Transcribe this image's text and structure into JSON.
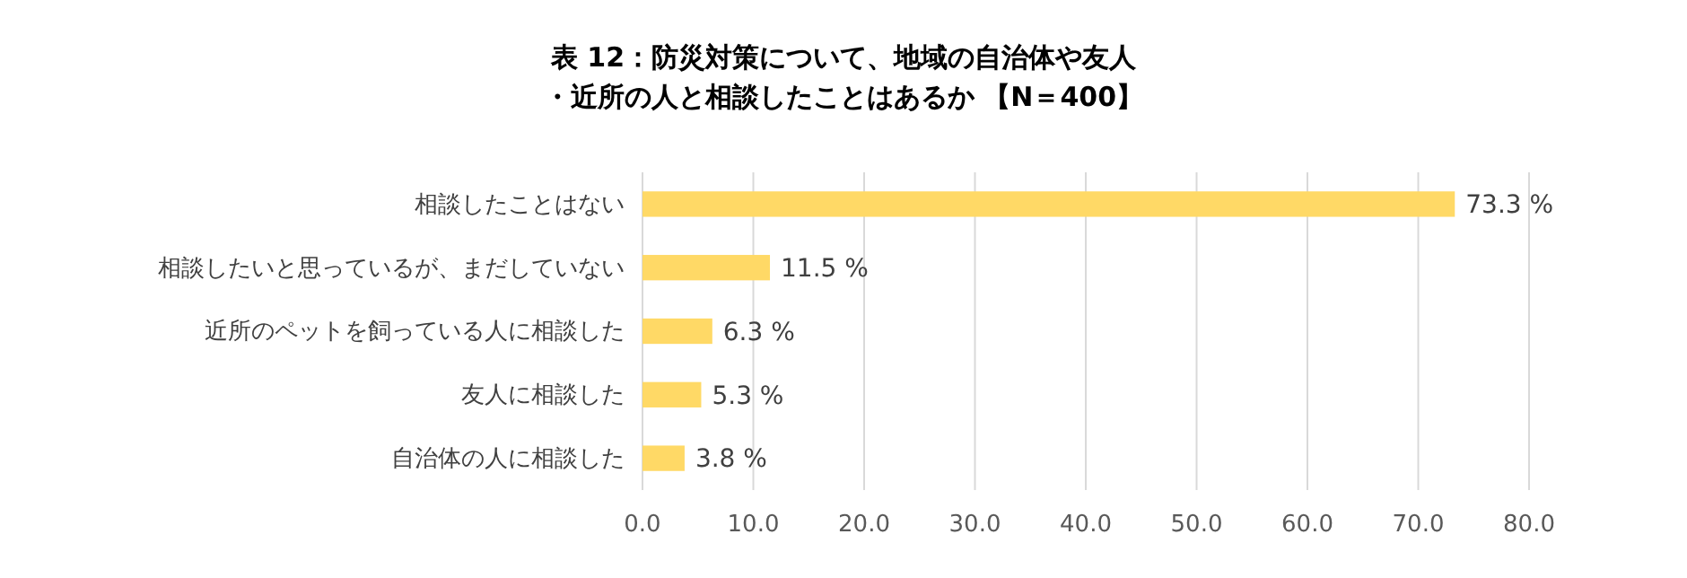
{
  "chart_data": {
    "type": "bar",
    "orientation": "horizontal",
    "title": "表 12：防災対策について、地域の自治体や友人・近所の人と相談したことはあるか 【N＝400】",
    "categories": [
      "相談したことはない",
      "相談したいと思っているが、まだしていない",
      "近所のペットを飼っている人に相談した",
      "友人に相談した",
      "自治体の人に相談した"
    ],
    "values": [
      73.3,
      11.5,
      6.3,
      5.3,
      3.8
    ],
    "value_labels": [
      "73.3 %",
      "11.5 %",
      "6.3 %",
      "5.3 %",
      "3.8 %"
    ],
    "color": "#ffd966",
    "xlim": [
      0,
      80
    ],
    "xticks": [
      {
        "value": 0,
        "label": "0.0"
      },
      {
        "value": 10,
        "label": "10.0"
      },
      {
        "value": 20,
        "label": "20.0"
      },
      {
        "value": 30,
        "label": "30.0"
      },
      {
        "value": 40,
        "label": "40.0"
      },
      {
        "value": 50,
        "label": "50.0"
      },
      {
        "value": 60,
        "label": "60.0"
      },
      {
        "value": 70,
        "label": "70.0"
      },
      {
        "value": 80,
        "label": "80.0"
      }
    ],
    "grid": "x"
  }
}
